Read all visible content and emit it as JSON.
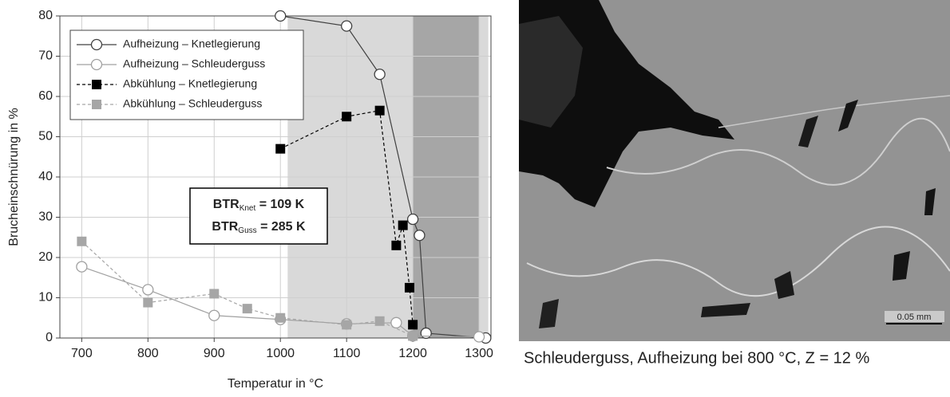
{
  "chart_data": {
    "type": "scatter",
    "xlabel": "Temperatur in °C",
    "ylabel": "Brucheinschnürung in %",
    "xlim": [
      667,
      1318
    ],
    "ylim": [
      0,
      80
    ],
    "xticks": [
      700,
      800,
      900,
      1000,
      1100,
      1200,
      1300
    ],
    "yticks": [
      0,
      10,
      20,
      30,
      40,
      50,
      60,
      70,
      80
    ],
    "grid": true,
    "legend": "upper left",
    "regions": [
      {
        "x": [
          1011,
          1200
        ],
        "color": "#d9d9d9"
      },
      {
        "x": [
          1200,
          1300
        ],
        "color": "#a6a6a6"
      },
      {
        "x": [
          1300,
          1314
        ],
        "color": "#d9d9d9"
      }
    ],
    "series": [
      {
        "name": "Aufheizung – Knetlegierung",
        "color": "#404040",
        "marker": "circle",
        "fill": "#ffffff",
        "dash": false,
        "x": [
          1000,
          1100,
          1150,
          1200,
          1210,
          1220,
          1310
        ],
        "values": [
          80,
          77.5,
          65.5,
          29.5,
          25.5,
          1.2,
          0
        ]
      },
      {
        "name": "Aufheizung – Schleuderguss",
        "color": "#a0a0a0",
        "marker": "circle",
        "fill": "#ffffff",
        "dash": false,
        "x": [
          700,
          800,
          900,
          1000,
          1100,
          1175,
          1200,
          1300
        ],
        "values": [
          17.7,
          12,
          5.6,
          4.6,
          3.5,
          3.8,
          0.5,
          0.3
        ]
      },
      {
        "name": "Abkühlung – Knetlegierung",
        "color": "#000000",
        "marker": "square",
        "fill": "#000000",
        "dash": true,
        "x": [
          1000,
          1100,
          1150,
          1175,
          1185,
          1195,
          1200
        ],
        "values": [
          47,
          55,
          56.5,
          23,
          28,
          12.5,
          3.3
        ]
      },
      {
        "name": "Abkühlung – Schleuderguss",
        "color": "#a6a6a6",
        "marker": "square",
        "fill": "#a6a6a6",
        "dash": true,
        "x": [
          700,
          800,
          900,
          950,
          1000,
          1100,
          1150,
          1200
        ],
        "values": [
          24,
          8.8,
          11,
          7.3,
          5,
          3.3,
          4.2,
          0.5
        ]
      }
    ],
    "annotations": [
      {
        "main": "BTR",
        "sub": "Knet",
        "rest": " = 109 K"
      },
      {
        "main": "BTR",
        "sub": "Guss",
        "rest": " = 285 K"
      }
    ]
  },
  "image": {
    "scale_bar": "0.05 mm",
    "caption": "Schleuderguss, Aufheizung bei 800 °C, Z = 12 %"
  }
}
